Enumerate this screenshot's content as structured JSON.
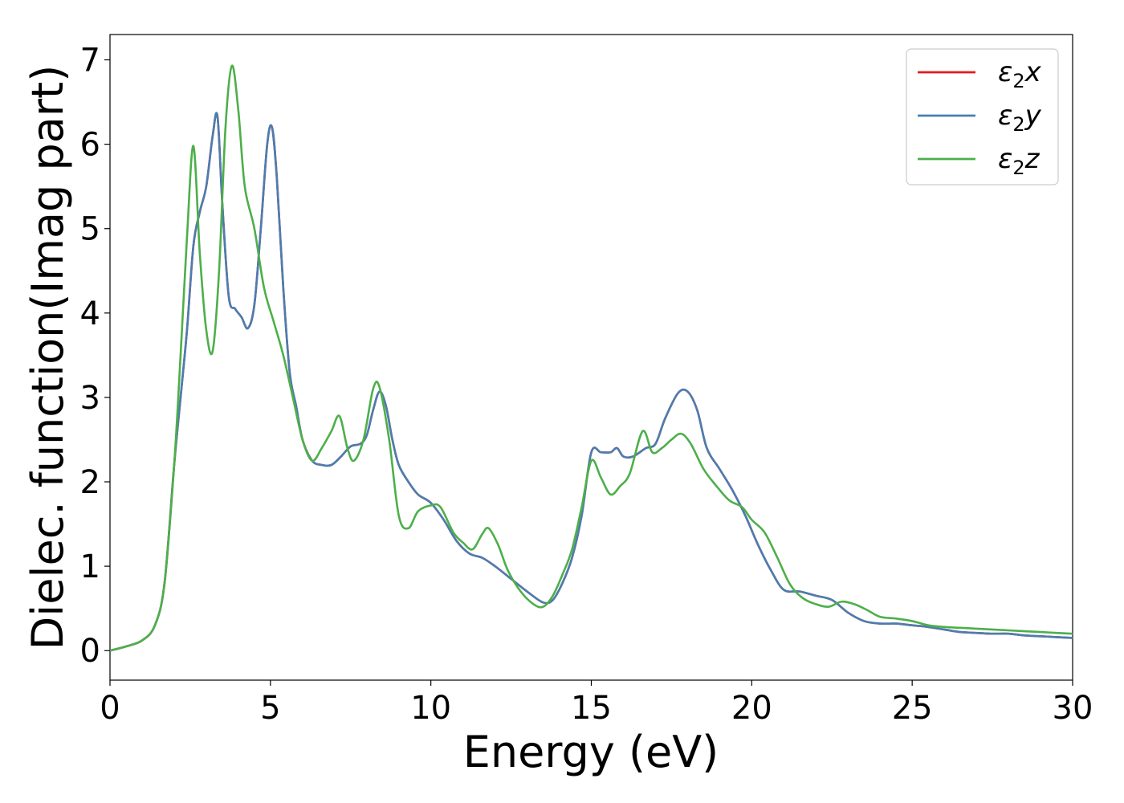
{
  "chart_data": {
    "type": "line",
    "title": "",
    "xlabel": "Energy (eV)",
    "ylabel": "Dielec. function(Imag part)",
    "xlim": [
      0,
      30
    ],
    "ylim": [
      -0.35,
      7.3
    ],
    "xticks": [
      0,
      5,
      10,
      15,
      20,
      25,
      30
    ],
    "yticks": [
      0,
      1,
      2,
      3,
      4,
      5,
      6,
      7
    ],
    "grid": false,
    "legend_position": "top-right",
    "series": [
      {
        "name": "ε2x",
        "legend_base": "ε",
        "legend_sub": "2",
        "legend_suffix": "x",
        "color": "#e41a1c",
        "x": [
          0,
          0.5,
          1.0,
          1.4,
          1.7,
          2.0,
          2.2,
          2.4,
          2.6,
          2.8,
          3.0,
          3.2,
          3.35,
          3.5,
          3.7,
          3.9,
          4.1,
          4.3,
          4.5,
          4.7,
          4.9,
          5.05,
          5.2,
          5.4,
          5.6,
          5.8,
          6.0,
          6.3,
          6.6,
          6.9,
          7.2,
          7.5,
          7.8,
          8.0,
          8.2,
          8.4,
          8.6,
          8.8,
          9.0,
          9.3,
          9.6,
          10.0,
          10.4,
          10.8,
          11.2,
          11.6,
          12.0,
          12.5,
          13.0,
          13.5,
          13.8,
          14.1,
          14.4,
          14.7,
          15.0,
          15.3,
          15.6,
          15.8,
          16.0,
          16.3,
          16.7,
          17.0,
          17.3,
          17.7,
          18.0,
          18.3,
          18.6,
          19.0,
          19.4,
          19.8,
          20.2,
          20.6,
          21.0,
          21.5,
          22.0,
          22.5,
          23.0,
          23.5,
          24.0,
          24.5,
          25.0,
          25.5,
          26.0,
          26.5,
          27.0,
          27.5,
          28.0,
          28.5,
          29.0,
          29.5,
          30.0
        ],
        "y": [
          0.0,
          0.05,
          0.12,
          0.3,
          0.8,
          2.2,
          3.0,
          3.8,
          4.8,
          5.2,
          5.5,
          6.1,
          6.33,
          5.3,
          4.2,
          4.05,
          3.95,
          3.82,
          4.1,
          5.0,
          6.0,
          6.2,
          5.6,
          4.3,
          3.3,
          2.9,
          2.5,
          2.25,
          2.2,
          2.2,
          2.3,
          2.42,
          2.45,
          2.55,
          2.85,
          3.07,
          2.9,
          2.5,
          2.2,
          2.0,
          1.85,
          1.75,
          1.55,
          1.3,
          1.15,
          1.1,
          1.0,
          0.85,
          0.7,
          0.57,
          0.6,
          0.8,
          1.1,
          1.6,
          2.35,
          2.35,
          2.35,
          2.4,
          2.3,
          2.3,
          2.4,
          2.45,
          2.75,
          3.05,
          3.07,
          2.85,
          2.4,
          2.15,
          1.9,
          1.6,
          1.25,
          0.95,
          0.72,
          0.7,
          0.65,
          0.6,
          0.45,
          0.35,
          0.32,
          0.32,
          0.3,
          0.28,
          0.25,
          0.22,
          0.21,
          0.2,
          0.2,
          0.18,
          0.17,
          0.16,
          0.15
        ]
      },
      {
        "name": "ε2y",
        "legend_base": "ε",
        "legend_sub": "2",
        "legend_suffix": "y",
        "color": "#4a7eb0",
        "x": [
          0,
          0.5,
          1.0,
          1.4,
          1.7,
          2.0,
          2.2,
          2.4,
          2.6,
          2.8,
          3.0,
          3.2,
          3.35,
          3.5,
          3.7,
          3.9,
          4.1,
          4.3,
          4.5,
          4.7,
          4.9,
          5.05,
          5.2,
          5.4,
          5.6,
          5.8,
          6.0,
          6.3,
          6.6,
          6.9,
          7.2,
          7.5,
          7.8,
          8.0,
          8.2,
          8.4,
          8.6,
          8.8,
          9.0,
          9.3,
          9.6,
          10.0,
          10.4,
          10.8,
          11.2,
          11.6,
          12.0,
          12.5,
          13.0,
          13.5,
          13.8,
          14.1,
          14.4,
          14.7,
          15.0,
          15.3,
          15.6,
          15.8,
          16.0,
          16.3,
          16.7,
          17.0,
          17.3,
          17.7,
          18.0,
          18.3,
          18.6,
          19.0,
          19.4,
          19.8,
          20.2,
          20.6,
          21.0,
          21.5,
          22.0,
          22.5,
          23.0,
          23.5,
          24.0,
          24.5,
          25.0,
          25.5,
          26.0,
          26.5,
          27.0,
          27.5,
          28.0,
          28.5,
          29.0,
          29.5,
          30.0
        ],
        "y": [
          0.0,
          0.05,
          0.12,
          0.3,
          0.8,
          2.2,
          3.0,
          3.8,
          4.8,
          5.2,
          5.5,
          6.1,
          6.33,
          5.3,
          4.2,
          4.05,
          3.95,
          3.82,
          4.1,
          5.0,
          6.0,
          6.2,
          5.6,
          4.3,
          3.3,
          2.9,
          2.5,
          2.25,
          2.2,
          2.2,
          2.3,
          2.42,
          2.45,
          2.55,
          2.85,
          3.07,
          2.9,
          2.5,
          2.2,
          2.0,
          1.85,
          1.75,
          1.55,
          1.3,
          1.15,
          1.1,
          1.0,
          0.85,
          0.7,
          0.57,
          0.6,
          0.8,
          1.1,
          1.6,
          2.35,
          2.35,
          2.35,
          2.4,
          2.3,
          2.3,
          2.4,
          2.45,
          2.75,
          3.05,
          3.07,
          2.85,
          2.4,
          2.15,
          1.9,
          1.6,
          1.25,
          0.95,
          0.72,
          0.7,
          0.65,
          0.6,
          0.45,
          0.35,
          0.32,
          0.32,
          0.3,
          0.28,
          0.25,
          0.22,
          0.21,
          0.2,
          0.2,
          0.18,
          0.17,
          0.16,
          0.15
        ]
      },
      {
        "name": "ε2z",
        "legend_base": "ε",
        "legend_sub": "2",
        "legend_suffix": "z",
        "color": "#4daf4a",
        "x": [
          0,
          0.5,
          1.0,
          1.4,
          1.7,
          2.0,
          2.2,
          2.4,
          2.6,
          2.8,
          3.0,
          3.2,
          3.4,
          3.6,
          3.8,
          4.0,
          4.2,
          4.5,
          4.8,
          5.1,
          5.4,
          5.7,
          6.0,
          6.3,
          6.6,
          6.9,
          7.15,
          7.4,
          7.6,
          7.9,
          8.2,
          8.4,
          8.7,
          9.0,
          9.3,
          9.6,
          10.0,
          10.3,
          10.7,
          11.0,
          11.3,
          11.6,
          11.8,
          12.1,
          12.4,
          12.8,
          13.2,
          13.5,
          13.8,
          14.1,
          14.4,
          14.7,
          15.0,
          15.3,
          15.6,
          15.9,
          16.2,
          16.6,
          16.9,
          17.2,
          17.5,
          17.8,
          18.1,
          18.5,
          18.9,
          19.3,
          19.7,
          20.0,
          20.4,
          20.8,
          21.2,
          21.6,
          22.0,
          22.4,
          22.8,
          23.2,
          23.6,
          24.0,
          24.5,
          25.0,
          25.5,
          26.0,
          26.5,
          27.0,
          27.5,
          28.0,
          28.5,
          29.0,
          29.5,
          30.0
        ],
        "y": [
          0.0,
          0.05,
          0.12,
          0.3,
          0.8,
          2.2,
          3.5,
          4.9,
          5.98,
          4.7,
          3.8,
          3.55,
          4.5,
          6.2,
          6.93,
          6.4,
          5.5,
          5.0,
          4.3,
          3.9,
          3.5,
          3.0,
          2.5,
          2.25,
          2.4,
          2.6,
          2.78,
          2.4,
          2.25,
          2.5,
          3.1,
          3.12,
          2.5,
          1.6,
          1.45,
          1.65,
          1.72,
          1.7,
          1.4,
          1.28,
          1.2,
          1.38,
          1.45,
          1.25,
          0.95,
          0.7,
          0.55,
          0.52,
          0.65,
          0.9,
          1.2,
          1.7,
          2.25,
          2.05,
          1.85,
          1.95,
          2.1,
          2.6,
          2.35,
          2.4,
          2.5,
          2.57,
          2.45,
          2.15,
          1.95,
          1.78,
          1.7,
          1.55,
          1.4,
          1.1,
          0.78,
          0.62,
          0.55,
          0.52,
          0.58,
          0.55,
          0.48,
          0.4,
          0.38,
          0.35,
          0.3,
          0.28,
          0.27,
          0.26,
          0.25,
          0.24,
          0.23,
          0.22,
          0.21,
          0.2
        ]
      }
    ]
  }
}
